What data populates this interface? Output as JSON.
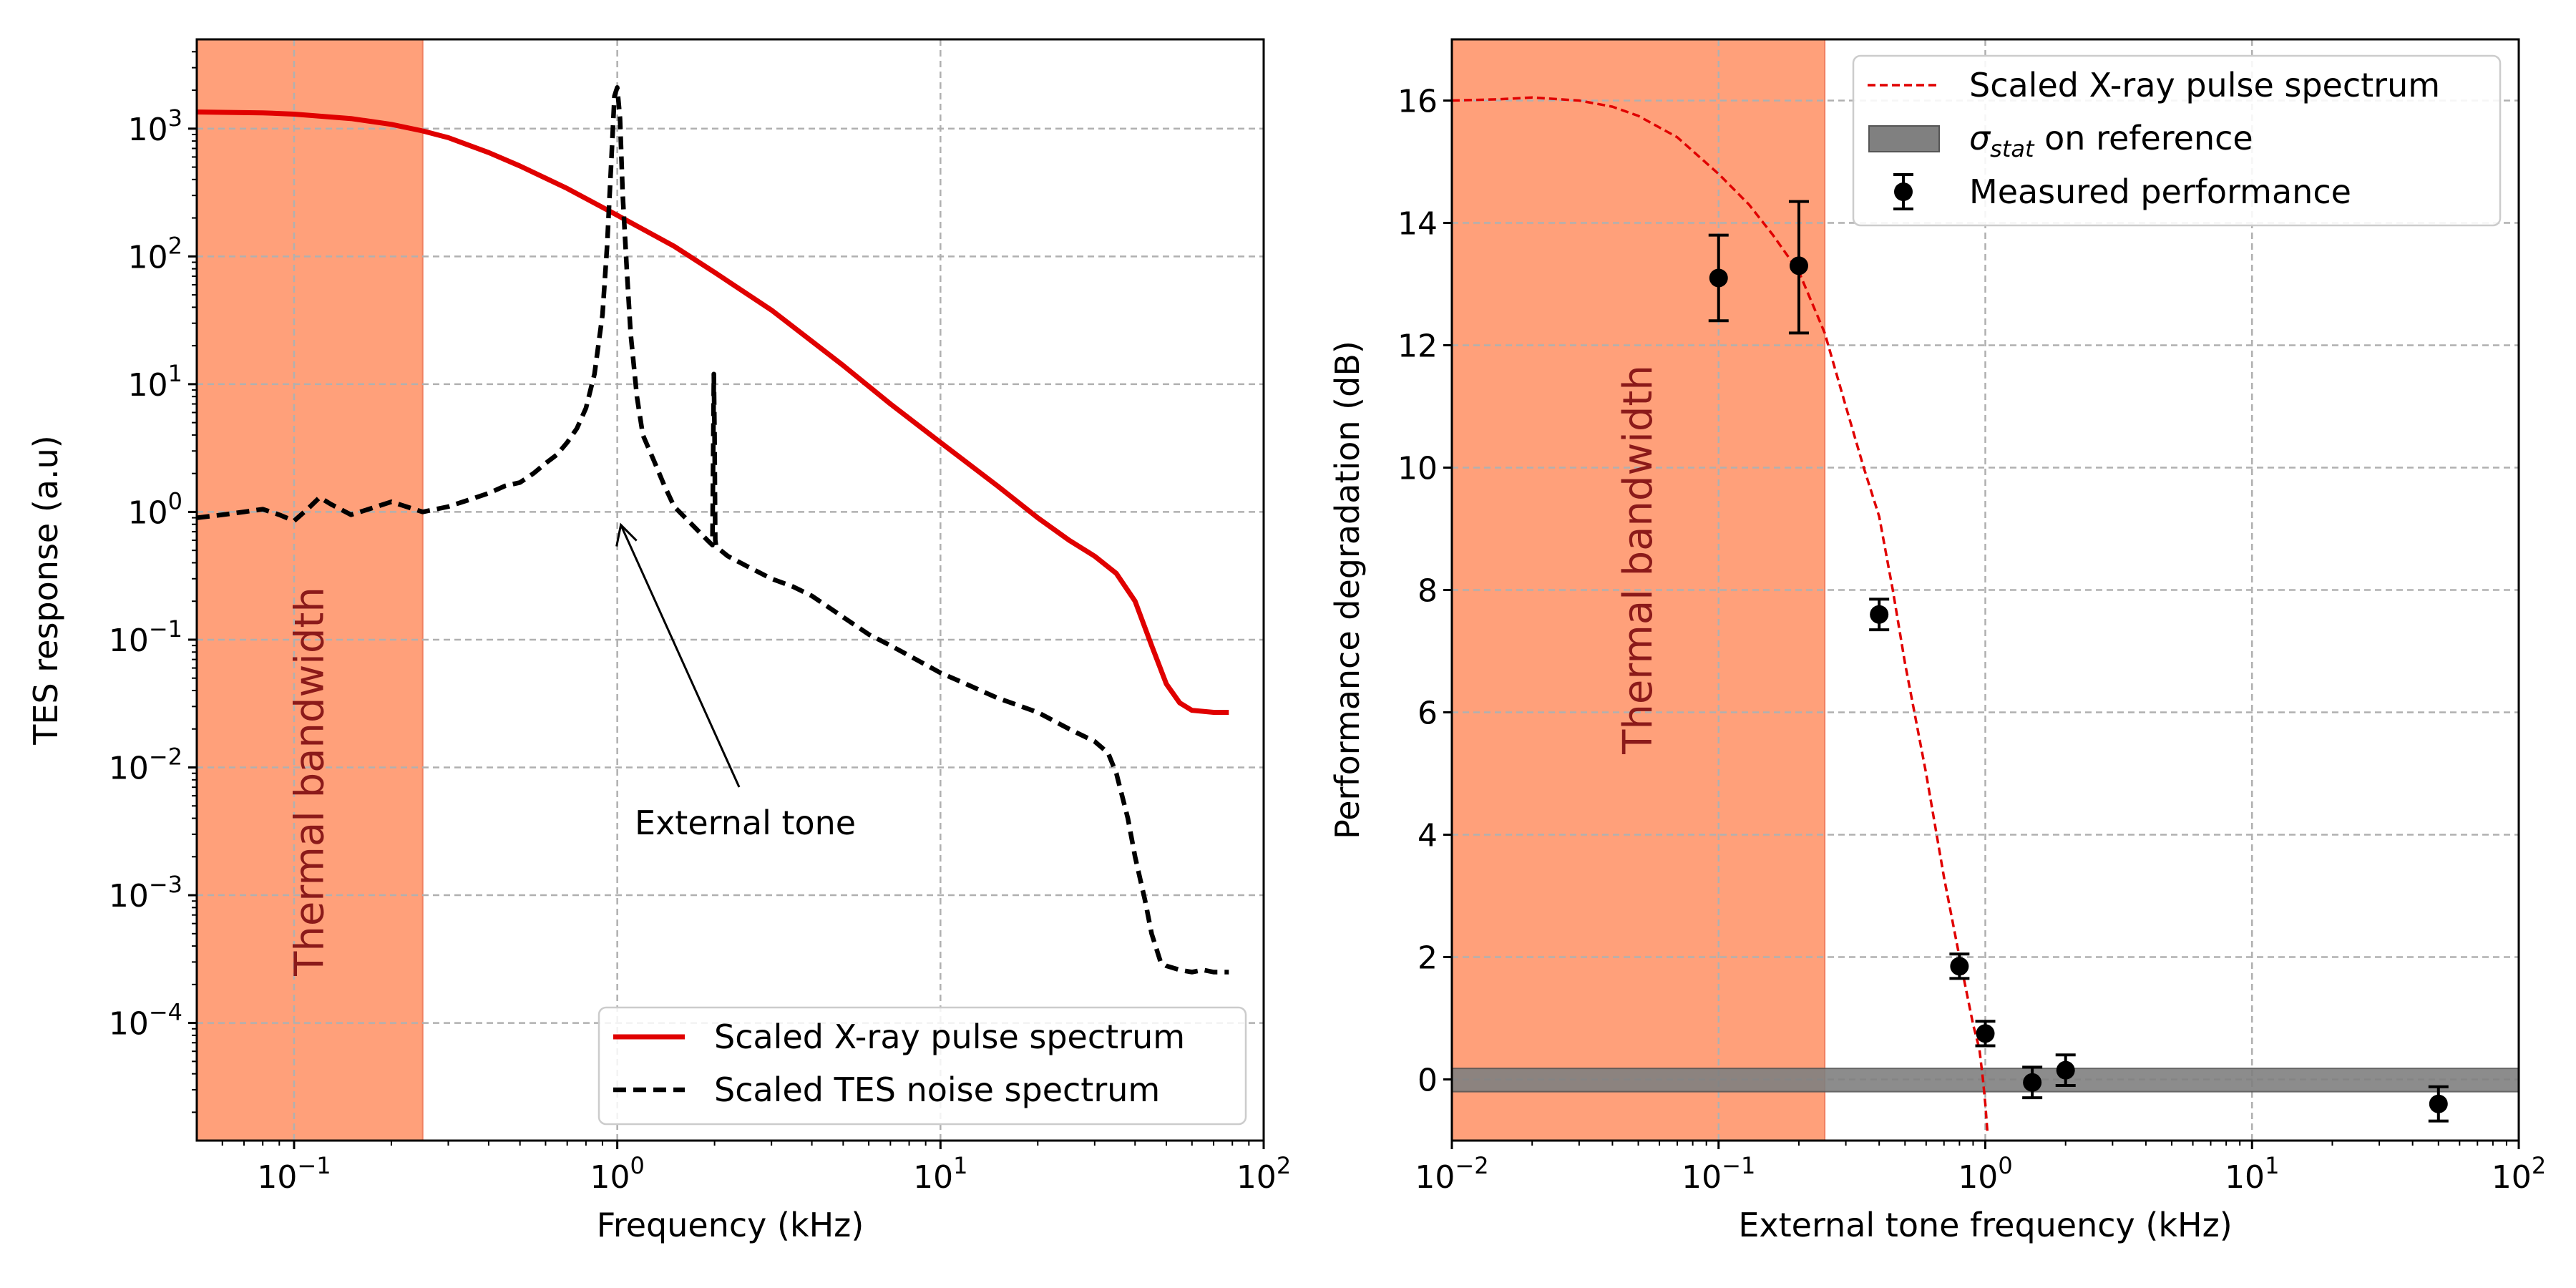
{
  "colors": {
    "thermal_band": "#FFA07A",
    "thermal_text": "#8B1A1A",
    "pulse": "#E00000",
    "noise": "#000000",
    "sigma_band": "#808080",
    "grid": "#B0B0B0"
  },
  "chart_data": [
    {
      "type": "line",
      "xscale": "log",
      "yscale": "log",
      "xlabel": "Frequency (kHz)",
      "ylabel": "TES response (a.u)",
      "xlim": [
        0.05,
        100
      ],
      "ylim": [
        1.2e-05,
        5000
      ],
      "grid": true,
      "xtick_values": [
        0.1,
        1,
        10,
        100
      ],
      "xtick_labels": [
        [
          "10",
          "−1"
        ],
        [
          "10",
          "0"
        ],
        [
          "10",
          "1"
        ],
        [
          "10",
          "2"
        ]
      ],
      "ytick_values": [
        0.0001,
        0.001,
        0.01,
        0.1,
        1,
        10,
        100,
        1000
      ],
      "ytick_labels": [
        [
          "10",
          "−4"
        ],
        [
          "10",
          "−3"
        ],
        [
          "10",
          "−2"
        ],
        [
          "10",
          "−1"
        ],
        [
          "10",
          "0"
        ],
        [
          "10",
          "1"
        ],
        [
          "10",
          "2"
        ],
        [
          "10",
          "3"
        ]
      ],
      "band": {
        "label": "Thermal bandwidth",
        "x0": 0.05,
        "x1": 0.25
      },
      "annotation": {
        "text": "External tone",
        "arrow_target": [
          1.0,
          0.9
        ],
        "text_position": [
          1.15,
          0.0042
        ]
      },
      "legend": {
        "location": "lower-right",
        "entries": [
          {
            "label": "Scaled X-ray pulse spectrum",
            "style": "solid-red"
          },
          {
            "label": "Scaled TES noise spectrum",
            "style": "dashed-black"
          }
        ]
      },
      "series": [
        {
          "name": "Scaled X-ray pulse spectrum",
          "style": "solid",
          "x": [
            0.05,
            0.08,
            0.1,
            0.15,
            0.2,
            0.25,
            0.3,
            0.4,
            0.5,
            0.7,
            1.0,
            1.5,
            2,
            3,
            5,
            7,
            10,
            15,
            20,
            25,
            30,
            35,
            40,
            45,
            50,
            55,
            60,
            70,
            78
          ],
          "values": [
            1350,
            1330,
            1300,
            1200,
            1080,
            960,
            850,
            650,
            510,
            340,
            210,
            120,
            75,
            38,
            14,
            7,
            3.5,
            1.6,
            0.9,
            0.6,
            0.45,
            0.33,
            0.2,
            0.09,
            0.045,
            0.032,
            0.028,
            0.027,
            0.027
          ]
        },
        {
          "name": "Scaled TES noise spectrum",
          "style": "dashed",
          "x": [
            0.05,
            0.06,
            0.07,
            0.08,
            0.09,
            0.1,
            0.11,
            0.12,
            0.13,
            0.15,
            0.17,
            0.2,
            0.25,
            0.3,
            0.35,
            0.4,
            0.45,
            0.5,
            0.55,
            0.6,
            0.65,
            0.7,
            0.75,
            0.8,
            0.85,
            0.9,
            0.93,
            0.96,
            0.98,
            1.0,
            1.02,
            1.04,
            1.07,
            1.1,
            1.15,
            1.2,
            1.3,
            1.4,
            1.5,
            1.7,
            1.9,
            1.97,
            1.98,
            1.99,
            2.0,
            2.01,
            2.02,
            2.05,
            2.2,
            2.5,
            3,
            3.5,
            4,
            5,
            6,
            7,
            8,
            10,
            12,
            15,
            20,
            25,
            30,
            33,
            35,
            38,
            40,
            43,
            45,
            48,
            50,
            55,
            60,
            65,
            70,
            75,
            78
          ],
          "values": [
            0.9,
            0.95,
            1.0,
            1.05,
            0.95,
            0.85,
            1.05,
            1.3,
            1.15,
            0.95,
            1.05,
            1.2,
            1.0,
            1.1,
            1.25,
            1.4,
            1.6,
            1.7,
            2.0,
            2.4,
            2.8,
            3.5,
            4.5,
            6.5,
            12,
            35,
            120,
            600,
            1800,
            2100,
            1200,
            300,
            80,
            25,
            8,
            4,
            2.5,
            1.6,
            1.1,
            0.8,
            0.6,
            0.55,
            2.5,
            12,
            4,
            0.6,
            0.55,
            0.52,
            0.45,
            0.38,
            0.3,
            0.26,
            0.22,
            0.15,
            0.11,
            0.09,
            0.075,
            0.055,
            0.045,
            0.035,
            0.027,
            0.02,
            0.016,
            0.013,
            0.009,
            0.004,
            0.002,
            0.0009,
            0.0005,
            0.0003,
            0.00028,
            0.00026,
            0.00025,
            0.00026,
            0.00025,
            0.00025,
            0.00025
          ]
        }
      ]
    },
    {
      "type": "line+errorbar",
      "xscale": "log",
      "yscale": "linear",
      "xlabel": "External tone frequency (kHz)",
      "ylabel": "Performance degradation (dB)",
      "xlim": [
        0.01,
        100
      ],
      "ylim": [
        -1,
        17
      ],
      "grid": true,
      "xtick_values": [
        0.01,
        0.1,
        1,
        10,
        100
      ],
      "xtick_labels": [
        [
          "10",
          "−2"
        ],
        [
          "10",
          "−1"
        ],
        [
          "10",
          "0"
        ],
        [
          "10",
          "1"
        ],
        [
          "10",
          "2"
        ]
      ],
      "ytick_values": [
        0,
        2,
        4,
        6,
        8,
        10,
        12,
        14,
        16
      ],
      "ytick_labels": [
        "0",
        "2",
        "4",
        "6",
        "8",
        "10",
        "12",
        "14",
        "16"
      ],
      "band": {
        "label": "Thermal bandwidth",
        "x0": 0.01,
        "x1": 0.25
      },
      "reference_band": {
        "y0": -0.2,
        "y1": 0.18
      },
      "legend": {
        "location": "upper-right",
        "entries": [
          {
            "label": "Scaled X-ray pulse spectrum",
            "style": "dashed-red"
          },
          {
            "label_main": "σ",
            "label_sub": "stat",
            "label_rest": " on reference",
            "style": "gray-patch"
          },
          {
            "label": "Measured performance",
            "style": "errorbar-marker"
          }
        ]
      },
      "series": [
        {
          "name": "Scaled X-ray pulse spectrum",
          "style": "dashed",
          "x": [
            0.01,
            0.015,
            0.02,
            0.03,
            0.04,
            0.05,
            0.07,
            0.1,
            0.13,
            0.16,
            0.2,
            0.25,
            0.3,
            0.35,
            0.4,
            0.45,
            0.5,
            0.6,
            0.7,
            0.8,
            0.9,
            0.95,
            0.98,
            1.0,
            1.02
          ],
          "values": [
            16.0,
            16.02,
            16.05,
            16.0,
            15.9,
            15.75,
            15.4,
            14.8,
            14.3,
            13.8,
            13.2,
            12.2,
            11.0,
            10.0,
            9.2,
            8.0,
            6.8,
            5.0,
            3.3,
            2.0,
            0.9,
            0.5,
            0.0,
            -0.4,
            -0.9
          ]
        },
        {
          "name": "Measured performance",
          "style": "markers",
          "x": [
            0.1,
            0.2,
            0.4,
            0.8,
            1.0,
            1.5,
            2.0,
            50
          ],
          "values": [
            13.1,
            13.3,
            7.6,
            1.85,
            0.75,
            -0.05,
            0.15,
            -0.4
          ],
          "err_low": [
            0.7,
            1.1,
            0.25,
            0.2,
            0.2,
            0.25,
            0.25,
            0.28
          ],
          "err_high": [
            0.7,
            1.05,
            0.25,
            0.2,
            0.2,
            0.25,
            0.25,
            0.28
          ]
        }
      ]
    }
  ]
}
